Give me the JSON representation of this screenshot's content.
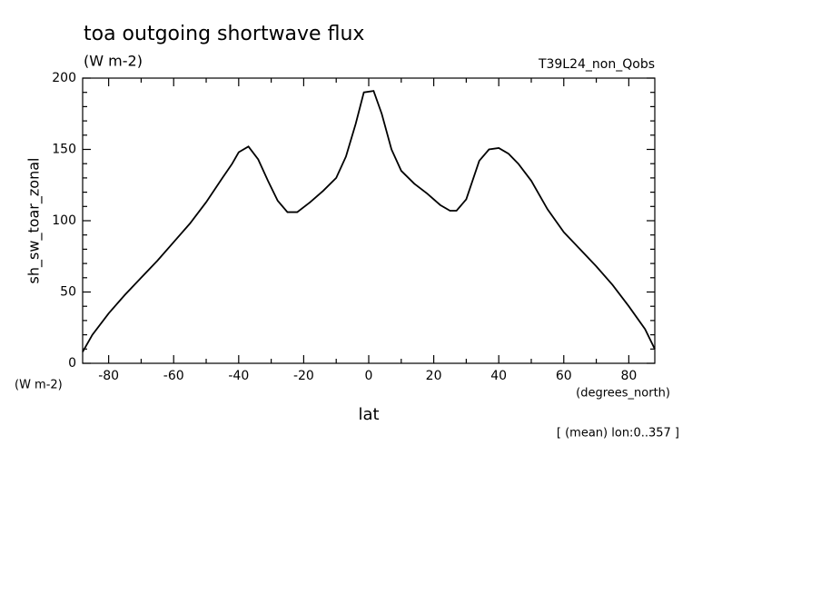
{
  "chart_data": {
    "type": "line",
    "title": "toa outgoing shortwave flux",
    "subtitle": "(W m-2)",
    "run_label": "T39L24_non_Qobs",
    "y_label": "sh_sw_toar_zonal",
    "y_units": "(W m-2)",
    "x_label": "lat",
    "x_units": "(degrees_north)",
    "note": "[ (mean) lon:0..357 ]",
    "x": [
      -88,
      -85,
      -80,
      -75,
      -70,
      -65,
      -60,
      -55,
      -50,
      -45,
      -42,
      -40,
      -37,
      -34,
      -31,
      -28,
      -25,
      -22,
      -18,
      -14,
      -10,
      -7,
      -4,
      -1.5,
      1.5,
      4,
      7,
      10,
      14,
      18,
      22,
      25,
      27,
      30,
      34,
      37,
      40,
      43,
      46,
      50,
      55,
      60,
      65,
      70,
      75,
      80,
      85,
      88
    ],
    "series": [
      {
        "name": "sh_sw_toar_zonal",
        "color": "#000000",
        "values": [
          8,
          20,
          35,
          48,
          60,
          72,
          85,
          98,
          113,
          130,
          140,
          148,
          152,
          143,
          128,
          114,
          106,
          106,
          113,
          121,
          130,
          145,
          168,
          190,
          191,
          175,
          150,
          135,
          126,
          119,
          111,
          107,
          107,
          115,
          142,
          150,
          151,
          147,
          140,
          128,
          108,
          92,
          80,
          68,
          55,
          40,
          24,
          10
        ]
      }
    ],
    "xlim": [
      -88,
      88
    ],
    "ylim": [
      0,
      200
    ],
    "xticks": [
      -80,
      -60,
      -40,
      -20,
      0,
      20,
      40,
      60,
      80
    ],
    "yticks": [
      0,
      50,
      100,
      150,
      200
    ],
    "xminorticks": [
      -70,
      -50,
      -30,
      -10,
      10,
      30,
      50,
      70
    ],
    "yminorticks": [
      10,
      20,
      30,
      40,
      60,
      70,
      80,
      90,
      110,
      120,
      130,
      140,
      160,
      170,
      180,
      190
    ],
    "grid": false
  }
}
